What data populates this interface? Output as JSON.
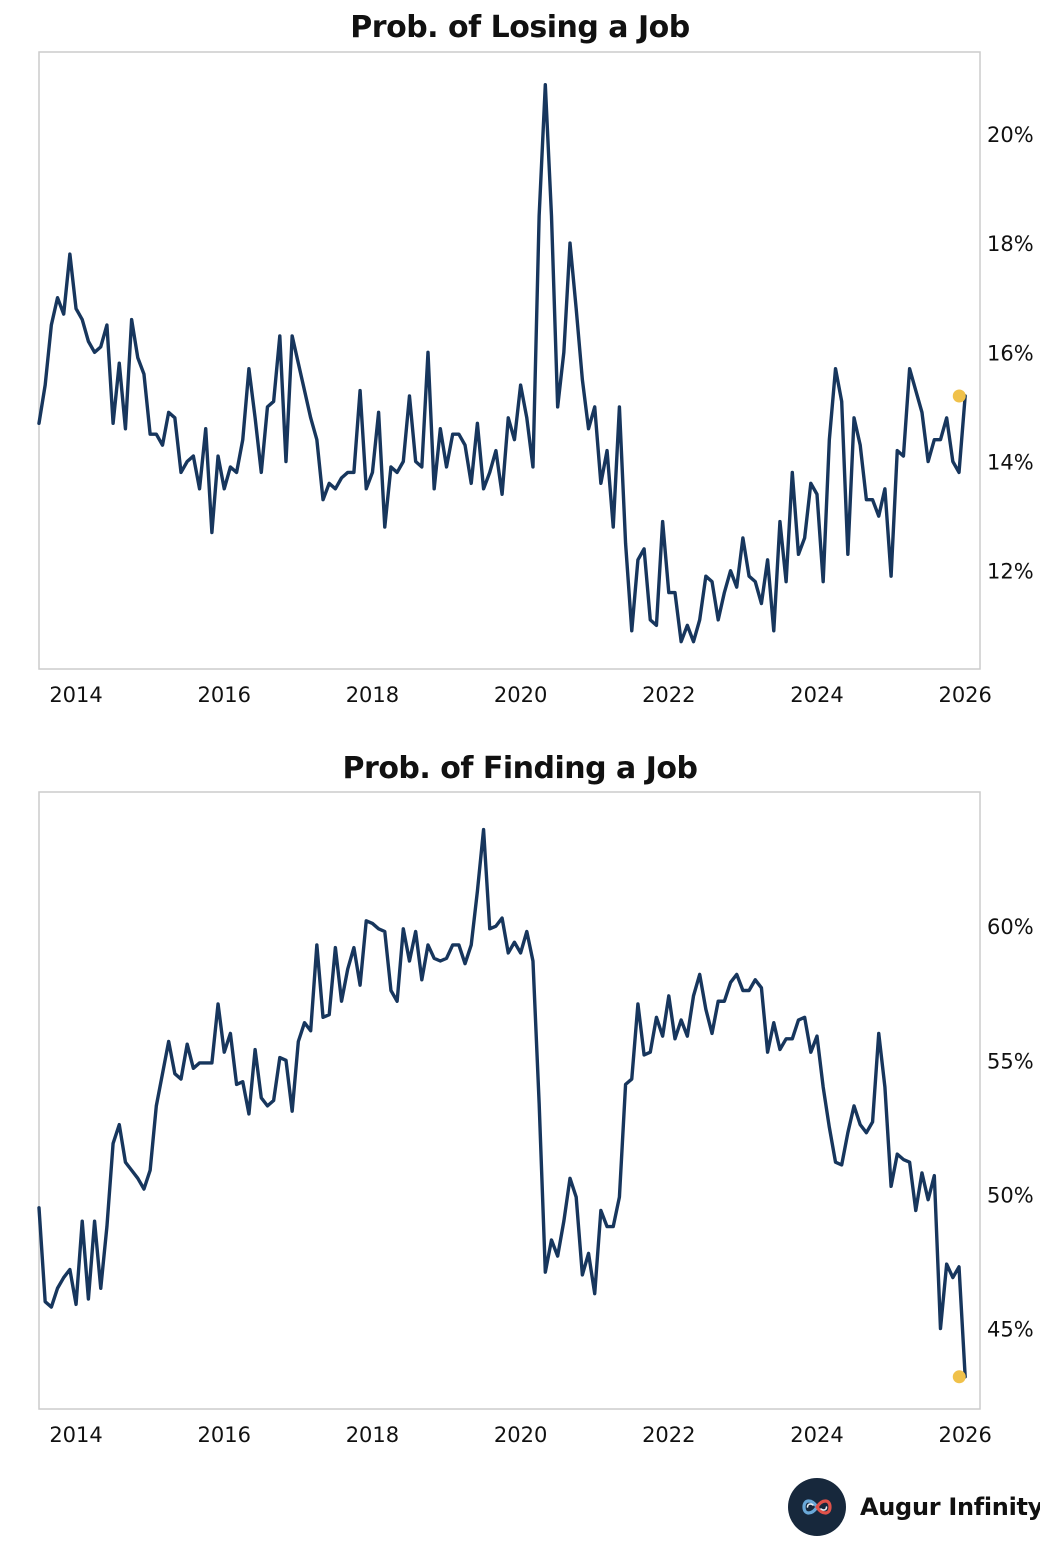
{
  "colors": {
    "line": "#17365d",
    "marker": "#f0c14a",
    "frame": "#cccccc"
  },
  "chart_data": [
    {
      "type": "line",
      "title": "Prob. of Losing a Job",
      "xlabel": "",
      "ylabel": "",
      "x_start": 2013.5,
      "x_step": 0.0833333,
      "xlim": [
        2013.5,
        2026.2
      ],
      "ylim": [
        10.2,
        21.5
      ],
      "xticks": [
        2014,
        2016,
        2018,
        2020,
        2022,
        2024,
        2026
      ],
      "xtick_labels": [
        "2014",
        "2016",
        "2018",
        "2020",
        "2022",
        "2024",
        "2026"
      ],
      "yticks": [
        12,
        14,
        16,
        18,
        20
      ],
      "ytick_labels": [
        "12%",
        "14%",
        "16%",
        "18%",
        "20%"
      ],
      "series": [
        {
          "name": "Prob. of Losing a Job",
          "values": [
            14.7,
            15.4,
            16.5,
            17.0,
            16.7,
            17.8,
            16.8,
            16.6,
            16.2,
            16.0,
            16.1,
            16.5,
            14.7,
            15.8,
            14.6,
            16.6,
            15.9,
            15.6,
            14.5,
            14.5,
            14.3,
            14.9,
            14.8,
            13.8,
            14.0,
            14.1,
            13.5,
            14.6,
            12.7,
            14.1,
            13.5,
            13.9,
            13.8,
            14.4,
            15.7,
            14.8,
            13.8,
            15.0,
            15.1,
            16.3,
            14.0,
            16.3,
            15.8,
            15.3,
            14.8,
            14.4,
            13.3,
            13.6,
            13.5,
            13.7,
            13.8,
            13.8,
            15.3,
            13.5,
            13.8,
            14.9,
            12.8,
            13.9,
            13.8,
            14.0,
            15.2,
            14.0,
            13.9,
            16.0,
            13.5,
            14.6,
            13.9,
            14.5,
            14.5,
            14.3,
            13.6,
            14.7,
            13.5,
            13.8,
            14.2,
            13.4,
            14.8,
            14.4,
            15.4,
            14.8,
            13.9,
            18.5,
            20.9,
            18.5,
            15.0,
            16.0,
            18.0,
            16.8,
            15.5,
            14.6,
            15.0,
            13.6,
            14.2,
            12.8,
            15.0,
            12.5,
            10.9,
            12.2,
            12.4,
            11.1,
            11.0,
            12.9,
            11.6,
            11.6,
            10.7,
            11.0,
            10.7,
            11.1,
            11.9,
            11.8,
            11.1,
            11.6,
            12.0,
            11.7,
            12.6,
            11.9,
            11.8,
            11.4,
            12.2,
            10.9,
            12.9,
            11.8,
            13.8,
            12.3,
            12.6,
            13.6,
            13.4,
            11.8,
            14.4,
            15.7,
            15.1,
            12.3,
            14.8,
            14.3,
            13.3,
            13.3,
            13.0,
            13.5,
            11.9,
            14.2,
            14.1,
            15.7,
            15.3,
            14.9,
            14.0,
            14.4,
            14.4,
            14.8,
            14.0,
            13.8,
            15.2
          ]
        }
      ],
      "last_point": {
        "x": 2025.92,
        "y": 15.2
      }
    },
    {
      "type": "line",
      "title": "Prob. of Finding a Job",
      "xlabel": "",
      "ylabel": "",
      "x_start": 2013.5,
      "x_step": 0.0833333,
      "xlim": [
        2013.5,
        2026.2
      ],
      "ylim": [
        42.0,
        65.0
      ],
      "xticks": [
        2014,
        2016,
        2018,
        2020,
        2022,
        2024,
        2026
      ],
      "xtick_labels": [
        "2014",
        "2016",
        "2018",
        "2020",
        "2022",
        "2024",
        "2026"
      ],
      "yticks": [
        45,
        50,
        55,
        60
      ],
      "ytick_labels": [
        "45%",
        "50%",
        "55%",
        "60%"
      ],
      "series": [
        {
          "name": "Prob. of Finding a Job",
          "values": [
            49.5,
            46.0,
            45.8,
            46.5,
            46.9,
            47.2,
            45.9,
            49.0,
            46.1,
            49.0,
            46.5,
            48.8,
            51.9,
            52.6,
            51.2,
            50.9,
            50.6,
            50.2,
            50.9,
            53.3,
            54.5,
            55.7,
            54.5,
            54.3,
            55.6,
            54.7,
            54.9,
            54.9,
            54.9,
            57.1,
            55.3,
            56.0,
            54.1,
            54.2,
            53.0,
            55.4,
            53.6,
            53.3,
            53.5,
            55.1,
            55.0,
            53.1,
            55.7,
            56.4,
            56.1,
            59.3,
            56.6,
            56.7,
            59.2,
            57.2,
            58.4,
            59.2,
            57.8,
            60.2,
            60.1,
            59.9,
            59.8,
            57.6,
            57.2,
            59.9,
            58.7,
            59.8,
            58.0,
            59.3,
            58.8,
            58.7,
            58.8,
            59.3,
            59.3,
            58.6,
            59.3,
            61.3,
            63.6,
            59.9,
            60.0,
            60.3,
            59.0,
            59.4,
            59.0,
            59.8,
            58.7,
            53.4,
            47.1,
            48.3,
            47.7,
            49.0,
            50.6,
            49.9,
            47.0,
            47.8,
            46.3,
            49.4,
            48.8,
            48.8,
            49.9,
            54.1,
            54.3,
            57.1,
            55.2,
            55.3,
            56.6,
            55.9,
            57.4,
            55.8,
            56.5,
            55.9,
            57.4,
            58.2,
            56.9,
            56.0,
            57.2,
            57.2,
            57.9,
            58.2,
            57.6,
            57.6,
            58.0,
            57.7,
            55.3,
            56.4,
            55.4,
            55.8,
            55.8,
            56.5,
            56.6,
            55.3,
            55.9,
            54.0,
            52.5,
            51.2,
            51.1,
            52.3,
            53.3,
            52.6,
            52.3,
            52.7,
            56.0,
            54.0,
            50.3,
            51.5,
            51.3,
            51.2,
            49.4,
            50.8,
            49.8,
            50.7,
            45.0,
            47.4,
            46.9,
            47.3,
            43.2
          ]
        }
      ],
      "last_point": {
        "x": 2025.92,
        "y": 43.2
      }
    }
  ],
  "brand": {
    "name": "Augur Infinity",
    "logo_icon": "infinity-logo-icon"
  }
}
